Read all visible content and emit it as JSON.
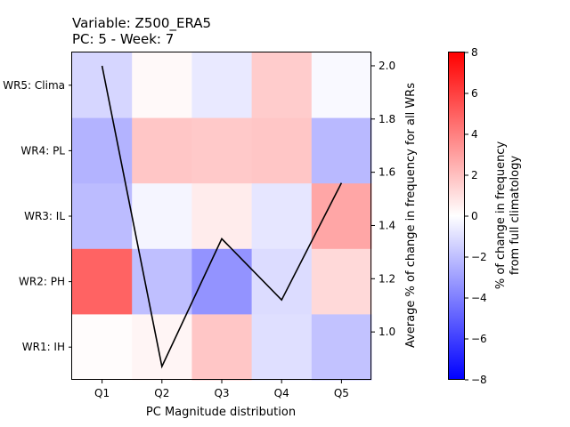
{
  "chart_data": {
    "type": "heatmap",
    "title_line1": "Variable: Z500_ERA5",
    "title_line2": "PC: 5 - Week: 7",
    "xlabel": "PC Magnitude distribution",
    "ylabel_right": "Average % of change in frequency for all WRs",
    "colorbar_label_line1": "% of change in frequency",
    "colorbar_label_line2": "from full climatology",
    "categories": [
      "Q1",
      "Q2",
      "Q3",
      "Q4",
      "Q5"
    ],
    "rows": [
      "WR5: Clima",
      "WR4: PL",
      "WR3: IL",
      "WR2: PH",
      "WR1: IH"
    ],
    "values": [
      [
        -1.3,
        0.2,
        -0.7,
        1.6,
        -0.2
      ],
      [
        -2.4,
        1.8,
        1.7,
        1.8,
        -2.2
      ],
      [
        -2.1,
        -0.3,
        0.6,
        -0.8,
        2.8
      ],
      [
        4.9,
        -2.0,
        -3.4,
        -1.1,
        1.2
      ],
      [
        0.1,
        0.3,
        1.8,
        -1.0,
        -1.9
      ]
    ],
    "color_scale": {
      "min": -8,
      "max": 8,
      "colormap": "bwr"
    },
    "colorbar_ticks": [
      "8",
      "6",
      "4",
      "2",
      "0",
      "−2",
      "−4",
      "−6",
      "−8"
    ],
    "line_series": {
      "color": "#000000",
      "values": [
        2.0,
        0.87,
        1.35,
        1.12,
        1.56
      ]
    },
    "right_axis": {
      "ylim": [
        0.82,
        2.05
      ],
      "ticks": [
        "1.0",
        "1.2",
        "1.4",
        "1.6",
        "1.8",
        "2.0"
      ]
    }
  }
}
